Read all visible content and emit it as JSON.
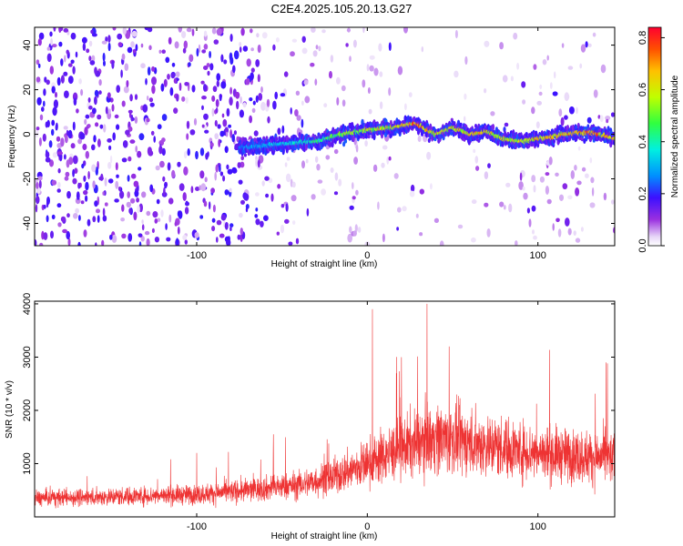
{
  "title": "C2E4.2025.105.20.13.G27",
  "chart_data": [
    {
      "type": "heatmap",
      "xlabel": "Height of straight line (km)",
      "ylabel": "Frequency (Hz)",
      "xlim": [
        -195,
        145
      ],
      "ylim": [
        -50,
        48
      ],
      "x_ticks": [
        -100,
        0,
        100
      ],
      "y_ticks": [
        -40,
        -20,
        0,
        20,
        40
      ],
      "colorbar": {
        "label": "Normalized spectral amplitude",
        "range": [
          0.0,
          0.84
        ],
        "ticks": [
          0.0,
          0.2,
          0.4,
          0.6,
          0.8
        ]
      },
      "ridge": {
        "x": [
          -75,
          -60,
          -45,
          -30,
          -15,
          0,
          15,
          28,
          40,
          50,
          60,
          70,
          80,
          90,
          100,
          115,
          130,
          145
        ],
        "y": [
          -6,
          -5,
          -4,
          -3,
          0,
          2,
          3,
          5,
          0,
          3,
          0,
          1,
          -2,
          -3,
          -2,
          0,
          1,
          -2
        ],
        "amp": [
          0.3,
          0.35,
          0.4,
          0.45,
          0.55,
          0.6,
          0.65,
          0.8,
          0.65,
          0.7,
          0.7,
          0.7,
          0.65,
          0.65,
          0.7,
          0.75,
          0.8,
          0.7
        ]
      }
    },
    {
      "type": "line",
      "xlabel": "Height of straight line (km)",
      "ylabel": "SNR (10 * v/v)",
      "xlim": [
        -195,
        145
      ],
      "ylim": [
        0,
        4050
      ],
      "x_ticks": [
        -100,
        0,
        100
      ],
      "y_ticks": [
        1000,
        2000,
        3000,
        4000
      ],
      "series": [
        {
          "color": "#ee3333",
          "envelope_x": [
            -195,
            -150,
            -100,
            -70,
            -40,
            -20,
            0,
            20,
            40,
            60,
            80,
            100,
            120,
            145
          ],
          "envelope_mean": [
            350,
            380,
            420,
            500,
            600,
            750,
            1000,
            1300,
            1500,
            1400,
            1300,
            1200,
            1150,
            1100
          ],
          "peaks": [
            {
              "x": 3,
              "y": 3900
            },
            {
              "x": 35,
              "y": 4000
            },
            {
              "x": 48,
              "y": 3200
            },
            {
              "x": 20,
              "y": 3000
            },
            {
              "x": 140,
              "y": 2900
            },
            {
              "x": -55,
              "y": 1550
            },
            {
              "x": -100,
              "y": 1200
            }
          ]
        }
      ]
    }
  ]
}
